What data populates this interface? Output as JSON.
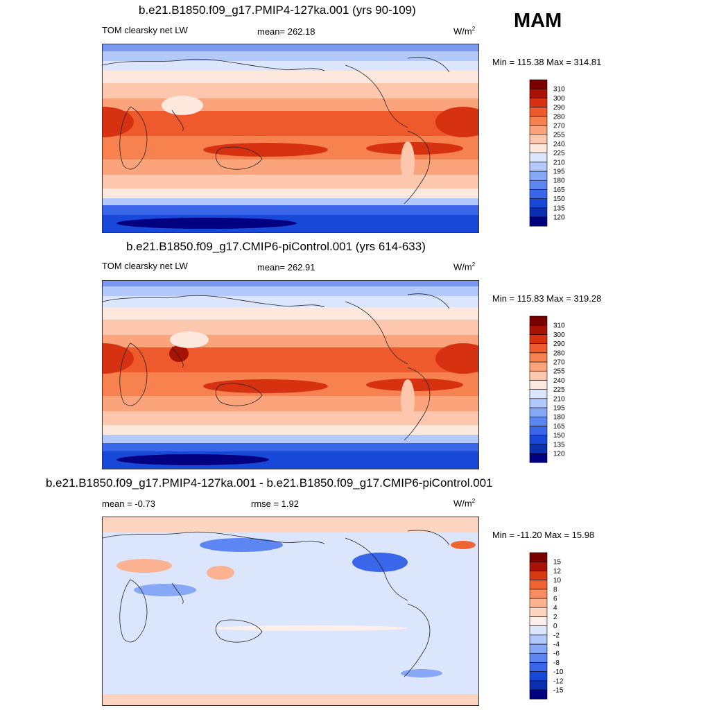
{
  "season": "MAM",
  "panels": [
    {
      "title": "b.e21.B1850.f09_g17.PMIP4-127ka.001 (yrs 90-109)",
      "left_label": "TOM clearsky net LW",
      "center_label": "mean= 262.18",
      "units": "W/m",
      "units_sup": "2",
      "minmax": "Min = 115.38 Max = 314.81",
      "levels": [
        "120",
        "135",
        "150",
        "165",
        "180",
        "195",
        "210",
        "225",
        "240",
        "255",
        "270",
        "280",
        "290",
        "300",
        "310"
      ],
      "colors": [
        "#000080",
        "#0a2fb0",
        "#1748d8",
        "#3a66ea",
        "#5c86f2",
        "#86a8f6",
        "#b3c8fb",
        "#dbe6fd",
        "#fde8de",
        "#fcc7ad",
        "#fba47c",
        "#f7814f",
        "#ef5a2c",
        "#d63212",
        "#a81205",
        "#7a0000"
      ]
    },
    {
      "title": "b.e21.B1850.f09_g17.CMIP6-piControl.001 (yrs 614-633)",
      "left_label": "TOM clearsky net LW",
      "center_label": "mean= 262.91",
      "units": "W/m",
      "units_sup": "2",
      "minmax": "Min = 115.83 Max = 319.28",
      "levels": [
        "120",
        "135",
        "150",
        "165",
        "180",
        "195",
        "210",
        "225",
        "240",
        "255",
        "270",
        "280",
        "290",
        "300",
        "310"
      ],
      "colors": [
        "#000080",
        "#0a2fb0",
        "#1748d8",
        "#3a66ea",
        "#5c86f2",
        "#86a8f6",
        "#b3c8fb",
        "#dbe6fd",
        "#fde8de",
        "#fcc7ad",
        "#fba47c",
        "#f7814f",
        "#ef5a2c",
        "#d63212",
        "#a81205",
        "#7a0000"
      ]
    },
    {
      "title": "b.e21.B1850.f09_g17.PMIP4-127ka.001 - b.e21.B1850.f09_g17.CMIP6-piControl.001",
      "left_label": "mean =  -0.73",
      "center_label": "rmse =   1.92",
      "units": "W/m",
      "units_sup": "2",
      "minmax": "Min = -11.20 Max =  15.98",
      "levels": [
        "-15",
        "-12",
        "-10",
        "-8",
        "-6",
        "-4",
        "-2",
        "0",
        "2",
        "4",
        "6",
        "8",
        "10",
        "12",
        "15"
      ],
      "colors": [
        "#000080",
        "#0a2fb0",
        "#1748d8",
        "#3a66ea",
        "#5c86f2",
        "#86a8f6",
        "#b3c8fb",
        "#dbe6fd",
        "#fdf0ea",
        "#fcd4bf",
        "#fbb290",
        "#f88d5f",
        "#ef6433",
        "#d63a12",
        "#a81205",
        "#7a0000"
      ]
    }
  ]
}
